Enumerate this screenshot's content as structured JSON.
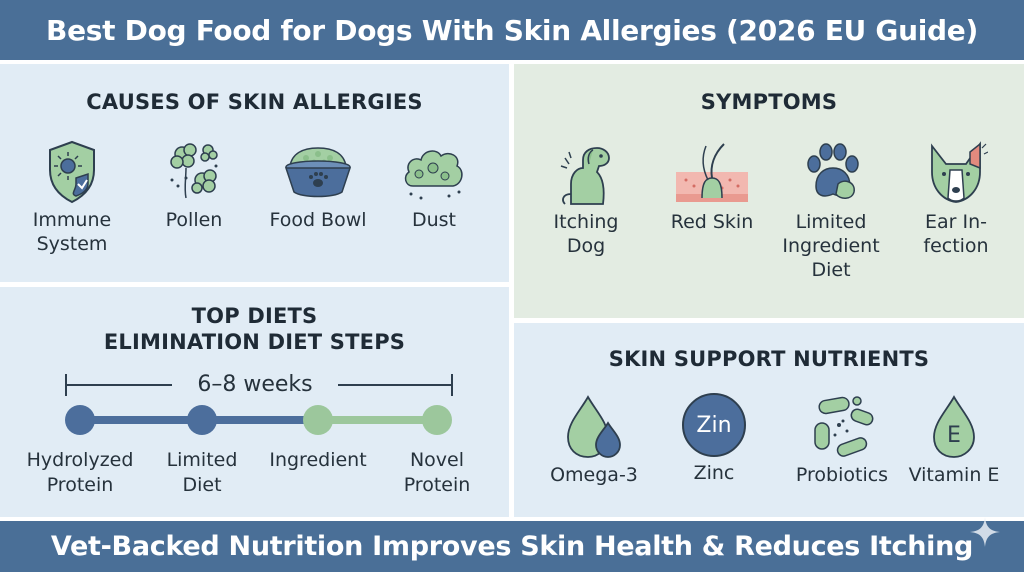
{
  "header": {
    "title": "Best Dog Food for Dogs With Skin Allergies (2026 EU Guide)"
  },
  "footer": {
    "tagline": "Vet-Backed Nutrition Improves Skin Health & Reduces Itching"
  },
  "causes": {
    "title": "CAUSES OF SKIN ALLERGIES",
    "items": [
      {
        "label_line1": "Immune",
        "label_line2": "System",
        "icon": "shield-virus-icon"
      },
      {
        "label_line1": "Pollen",
        "label_line2": "",
        "icon": "pollen-icon"
      },
      {
        "label_line1": "Food Bowl",
        "label_line2": "",
        "icon": "food-bowl-icon"
      },
      {
        "label_line1": "Dust",
        "label_line2": "",
        "icon": "dust-cloud-icon"
      }
    ]
  },
  "symptoms": {
    "title": "SYMPTOMS",
    "items": [
      {
        "label_line1": "Itching",
        "label_line2": "Dog",
        "label_line3": "",
        "icon": "itching-dog-icon"
      },
      {
        "label_line1": "Red Skin",
        "label_line2": "",
        "label_line3": "",
        "icon": "red-skin-icon"
      },
      {
        "label_line1": "Limited",
        "label_line2": "Ingredient",
        "label_line3": "Diet",
        "icon": "paw-icon"
      },
      {
        "label_line1": "Ear In-",
        "label_line2": "fection",
        "label_line3": "",
        "icon": "dog-ear-icon"
      }
    ]
  },
  "diets": {
    "title_line1": "TOP DIETS",
    "title_line2": "ELIMINATION DIET STEPS",
    "duration": "6–8 weeks",
    "steps": [
      {
        "line1": "Hydrolyzed",
        "line2": "Protein"
      },
      {
        "line1": "Limited",
        "line2": "Diet"
      },
      {
        "line1": "Ingredient",
        "line2": ""
      },
      {
        "line1": "Novel",
        "line2": "Protein"
      }
    ],
    "colors": {
      "blue": "#4c6e9c",
      "green": "#9cc79c"
    }
  },
  "nutrients": {
    "title": "SKIN SUPPORT NUTRIENTS",
    "items": [
      {
        "label": "Omega-3",
        "icon": "oil-drops-icon"
      },
      {
        "label": "Zinc",
        "icon_text": "Zin",
        "icon": "zinc-badge-icon"
      },
      {
        "label": "Probiotics",
        "icon": "probiotics-icon"
      },
      {
        "label": "Vitamin E",
        "icon_text": "E",
        "icon": "vitamin-drop-icon"
      }
    ]
  },
  "colors": {
    "banner": "#4a6f97",
    "panel_blue": "#e1ecf5",
    "panel_green": "#e3ece2",
    "icon_green": "#a3cfa3",
    "icon_blue": "#4c6e9c",
    "skin_red": "#f2b8b0"
  }
}
